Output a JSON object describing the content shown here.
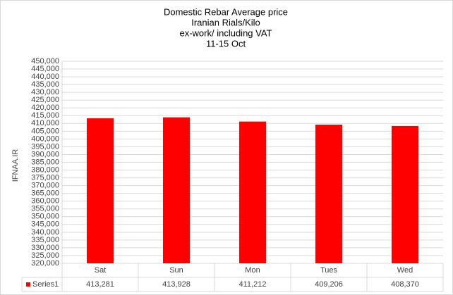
{
  "chart_data": {
    "type": "bar",
    "title": [
      "Domestic Rebar Average  price",
      "Iranian Rials/Kilo",
      "ex-work/ including VAT",
      "11-15  Oct"
    ],
    "y_label": "IFNAA.IR",
    "categories": [
      "Sat",
      "Sun",
      "Mon",
      "Tues",
      "Wed"
    ],
    "series": [
      {
        "name": "Series1",
        "color": "#ff0000",
        "values": [
          413281,
          413928,
          411212,
          409206,
          408370
        ],
        "value_labels": [
          "413,281",
          "413,928",
          "411,212",
          "409,206",
          "408,370"
        ]
      }
    ],
    "ylim": [
      320000,
      450000
    ],
    "yticks": [
      {
        "value": 320000,
        "label": "320,000"
      },
      {
        "value": 325000,
        "label": "325,000"
      },
      {
        "value": 330000,
        "label": "330,000"
      },
      {
        "value": 335000,
        "label": "335,000"
      },
      {
        "value": 340000,
        "label": "340,000"
      },
      {
        "value": 345000,
        "label": "345,000"
      },
      {
        "value": 350000,
        "label": "350,000"
      },
      {
        "value": 355000,
        "label": "355,000"
      },
      {
        "value": 360000,
        "label": "360,000"
      },
      {
        "value": 365000,
        "label": "365,000"
      },
      {
        "value": 370000,
        "label": "370,000"
      },
      {
        "value": 375000,
        "label": "375,000"
      },
      {
        "value": 380000,
        "label": "380,000"
      },
      {
        "value": 385000,
        "label": "385,000"
      },
      {
        "value": 390000,
        "label": "390,000"
      },
      {
        "value": 395000,
        "label": "395,000"
      },
      {
        "value": 400000,
        "label": "400,000"
      },
      {
        "value": 405000,
        "label": "405,000"
      },
      {
        "value": 410000,
        "label": "410,000"
      },
      {
        "value": 415000,
        "label": "415,000"
      },
      {
        "value": 420000,
        "label": "420,000"
      },
      {
        "value": 425000,
        "label": "425,000"
      },
      {
        "value": 430000,
        "label": "430,000"
      },
      {
        "value": 435000,
        "label": "435,000"
      },
      {
        "value": 440000,
        "label": "440,000"
      },
      {
        "value": 445000,
        "label": "445,000"
      },
      {
        "value": 450000,
        "label": "450,000"
      }
    ],
    "grid": true,
    "legend": "table"
  }
}
